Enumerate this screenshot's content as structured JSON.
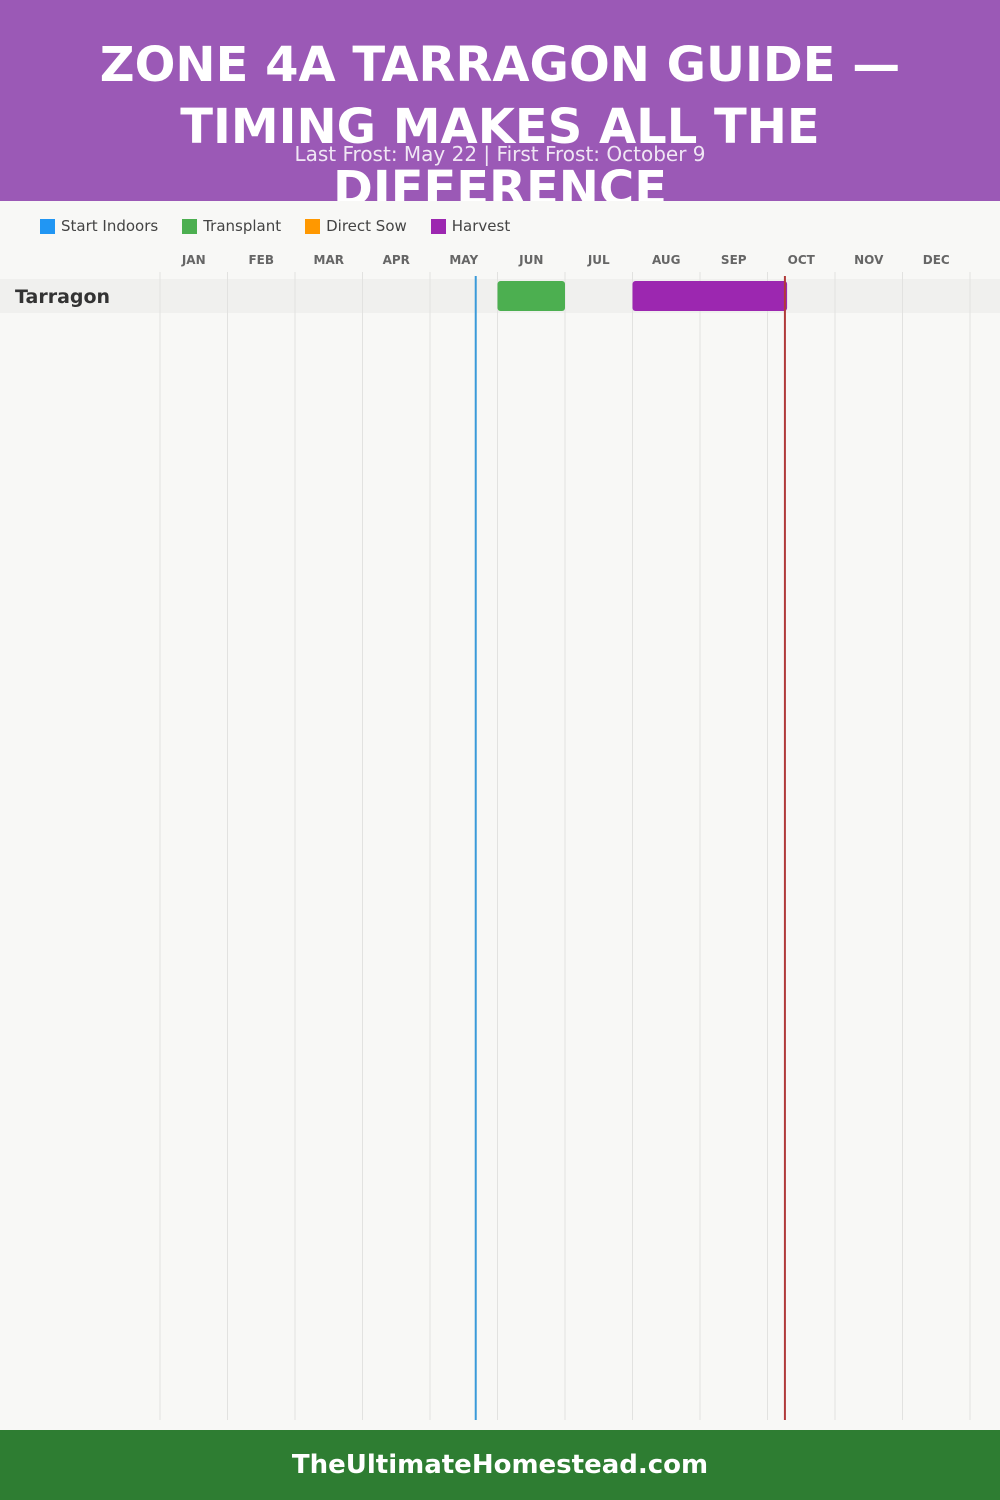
{
  "header": {
    "title": "ZONE 4A TARRAGON GUIDE — TIMING MAKES ALL THE DIFFERENCE",
    "subtitle": "Last Frost: May 22 | First Frost: October 9"
  },
  "legend": [
    {
      "label": "Start Indoors",
      "color": "#2196f3"
    },
    {
      "label": "Transplant",
      "color": "#4caf50"
    },
    {
      "label": "Direct Sow",
      "color": "#ff9800"
    },
    {
      "label": "Harvest",
      "color": "#9c27b0"
    }
  ],
  "chart_data": {
    "type": "gantt",
    "months": [
      "JAN",
      "FEB",
      "MAR",
      "APR",
      "MAY",
      "JUN",
      "JUL",
      "AUG",
      "SEP",
      "OCT",
      "NOV",
      "DEC"
    ],
    "rows": [
      {
        "crop": "Tarragon",
        "bars": [
          {
            "phase": "Transplant",
            "start": "Jun 1",
            "end": "Jun 30"
          },
          {
            "phase": "Harvest",
            "start": "Aug 1",
            "end": "Oct 9"
          }
        ]
      }
    ],
    "frost_lines": [
      {
        "type": "last-frost",
        "date": "May 22",
        "color": "#3a9ad9"
      },
      {
        "type": "first-frost",
        "date": "Oct 9",
        "color": "#b03a3a"
      }
    ]
  },
  "footer": {
    "text": "TheUltimateHomestead.com"
  }
}
